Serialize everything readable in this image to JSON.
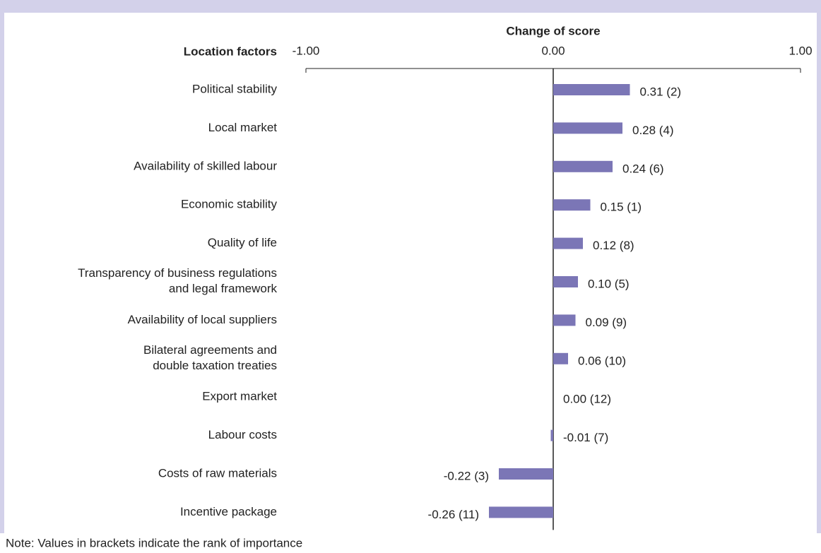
{
  "chart_data": {
    "type": "bar",
    "orientation": "horizontal",
    "axis_title": "Change of score",
    "category_axis_title": "Location factors",
    "categories": [
      "Political stability",
      "Local market",
      "Availability of skilled labour",
      "Economic stability",
      "Quality of life",
      "Transparency of business regulations\nand legal framework",
      "Availability of local suppliers",
      "Bilateral agreements and\ndouble taxation treaties",
      "Export market",
      "Labour costs",
      "Costs of raw materials",
      "Incentive package"
    ],
    "values": [
      0.31,
      0.28,
      0.24,
      0.15,
      0.12,
      0.1,
      0.09,
      0.06,
      0.0,
      -0.01,
      -0.22,
      -0.26
    ],
    "value_labels": [
      "0.31 (2)",
      "0.28 (4)",
      "0.24 (6)",
      "0.15 (1)",
      "0.12 (8)",
      "0.10 (5)",
      "0.09 (9)",
      "0.06 (10)",
      "0.00 (12)",
      "-0.01 (7)",
      "-0.22 (3)",
      "-0.26 (11)"
    ],
    "color": "#7b76b6",
    "xlim": [
      -1,
      1
    ],
    "xticks": [
      {
        "value": -1,
        "label": "-1.00"
      },
      {
        "value": 0,
        "label": "0.00"
      },
      {
        "value": 1,
        "label": "1.00"
      }
    ],
    "note": "Note: Values in brackets indicate the rank of importance"
  }
}
